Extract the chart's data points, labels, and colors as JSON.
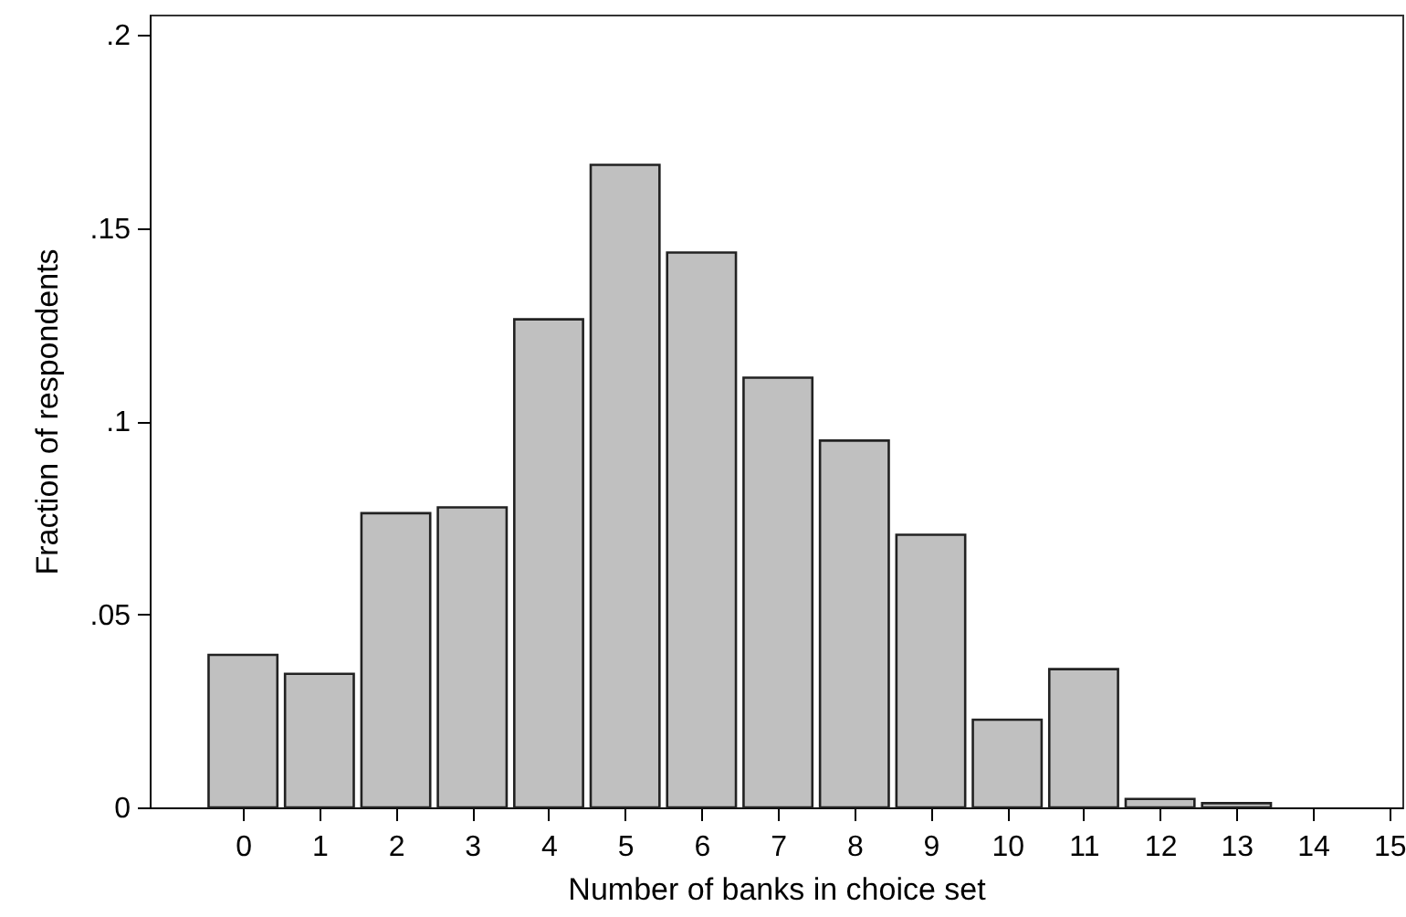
{
  "chart_data": {
    "type": "bar",
    "xlabel": "Number of banks in choice set",
    "ylabel": "Fraction of respondents",
    "x": [
      0,
      1,
      2,
      3,
      4,
      5,
      6,
      7,
      8,
      9,
      10,
      11,
      12,
      13
    ],
    "values": [
      0.0395,
      0.0346,
      0.0762,
      0.0777,
      0.1264,
      0.1664,
      0.1437,
      0.1113,
      0.095,
      0.0706,
      0.0227,
      0.0358,
      0.0022,
      0.0011
    ],
    "color": "#c0c0c0",
    "xlim": [
      -1.22,
      15.17
    ],
    "xticks": [
      0,
      1,
      2,
      3,
      4,
      5,
      6,
      7,
      8,
      9,
      10,
      11,
      12,
      13,
      14,
      15
    ],
    "ylim": [
      0,
      0.2053
    ],
    "yticks": [
      {
        "value": 0,
        "label": "0"
      },
      {
        "value": 0.05,
        "label": ".05"
      },
      {
        "value": 0.1,
        "label": ".1"
      },
      {
        "value": 0.15,
        "label": ".15"
      },
      {
        "value": 0.2,
        "label": ".2"
      }
    ],
    "grid": false
  }
}
